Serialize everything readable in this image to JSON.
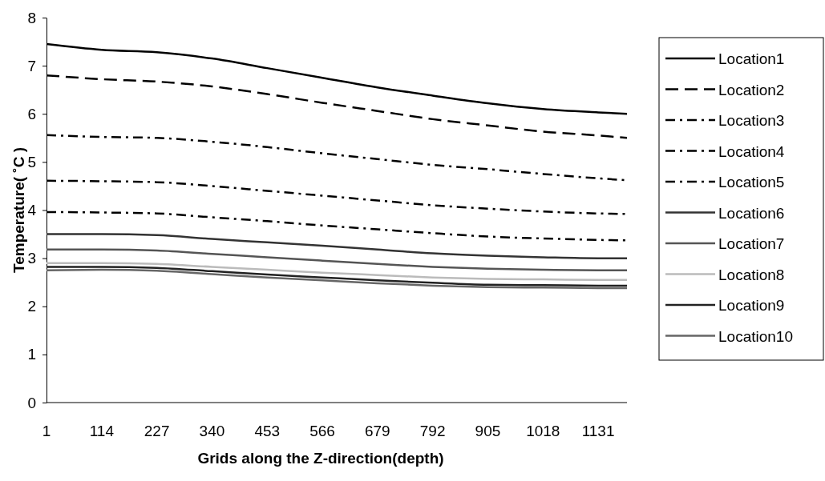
{
  "chart_data": {
    "type": "line",
    "xlabel": "Grids along the Z-direction(depth)",
    "ylabel": "Temperature( ˚C )",
    "x": [
      1,
      114,
      227,
      340,
      453,
      566,
      679,
      792,
      905,
      1018,
      1131,
      1190
    ],
    "xlim": [
      1,
      1190
    ],
    "xticks": [
      1,
      114,
      227,
      340,
      453,
      566,
      679,
      792,
      905,
      1018,
      1131
    ],
    "ylim": [
      0,
      8
    ],
    "yticks": [
      0,
      1,
      2,
      3,
      4,
      5,
      6,
      7,
      8
    ],
    "grid": false,
    "legend": "right",
    "marker": "none",
    "series": [
      {
        "name": "Location1",
        "color": "#000000",
        "line_style": "solid",
        "values": [
          7.45,
          7.33,
          7.28,
          7.15,
          6.95,
          6.75,
          6.55,
          6.38,
          6.22,
          6.1,
          6.03,
          6.0
        ]
      },
      {
        "name": "Location2",
        "color": "#000000",
        "line_style": "dashed",
        "values": [
          6.8,
          6.72,
          6.67,
          6.57,
          6.41,
          6.23,
          6.06,
          5.89,
          5.76,
          5.63,
          5.55,
          5.5
        ]
      },
      {
        "name": "Location3",
        "color": "#000000",
        "line_style": "dotted",
        "values": [
          5.56,
          5.52,
          5.5,
          5.42,
          5.31,
          5.18,
          5.06,
          4.94,
          4.85,
          4.75,
          4.66,
          4.62
        ]
      },
      {
        "name": "Location4",
        "color": "#000000",
        "line_style": "dotted",
        "values": [
          4.61,
          4.6,
          4.58,
          4.5,
          4.4,
          4.3,
          4.2,
          4.1,
          4.03,
          3.97,
          3.93,
          3.92
        ]
      },
      {
        "name": "Location5",
        "color": "#000000",
        "line_style": "dotted",
        "values": [
          3.96,
          3.95,
          3.93,
          3.85,
          3.77,
          3.68,
          3.6,
          3.52,
          3.45,
          3.41,
          3.38,
          3.37
        ]
      },
      {
        "name": "Location6",
        "color": "#333333",
        "line_style": "solid",
        "values": [
          3.5,
          3.5,
          3.48,
          3.4,
          3.33,
          3.26,
          3.18,
          3.1,
          3.05,
          3.02,
          3.0,
          3.0
        ]
      },
      {
        "name": "Location7",
        "color": "#555555",
        "line_style": "solid",
        "values": [
          3.18,
          3.18,
          3.16,
          3.09,
          3.02,
          2.95,
          2.88,
          2.82,
          2.78,
          2.76,
          2.75,
          2.75
        ]
      },
      {
        "name": "Location8",
        "color": "#bbbbbb",
        "line_style": "solid",
        "values": [
          2.9,
          2.9,
          2.88,
          2.82,
          2.76,
          2.7,
          2.65,
          2.6,
          2.57,
          2.56,
          2.55,
          2.55
        ]
      },
      {
        "name": "Location9",
        "color": "#222222",
        "line_style": "solid",
        "values": [
          2.82,
          2.82,
          2.8,
          2.73,
          2.66,
          2.6,
          2.54,
          2.49,
          2.45,
          2.44,
          2.43,
          2.43
        ]
      },
      {
        "name": "Location10",
        "color": "#666666",
        "line_style": "solid",
        "values": [
          2.75,
          2.76,
          2.74,
          2.67,
          2.6,
          2.54,
          2.48,
          2.43,
          2.4,
          2.39,
          2.38,
          2.38
        ]
      }
    ]
  }
}
